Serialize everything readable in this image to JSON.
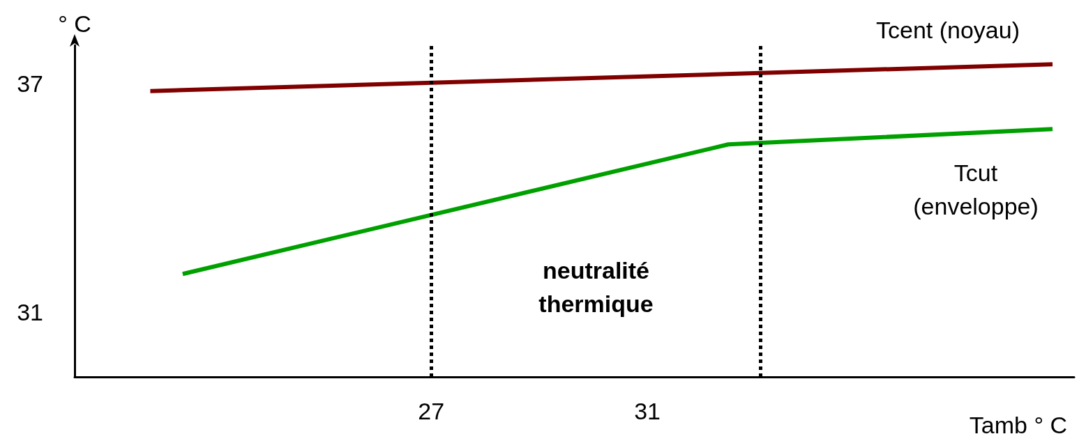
{
  "chart_data": {
    "type": "line",
    "ylabel": "° C",
    "xlabel": "Tamb ° C",
    "series": [
      {
        "name": "Tcent (noyau)",
        "color": "#800000",
        "x": [
          21.8,
          38.5
        ],
        "values": [
          36.8,
          37.5
        ]
      },
      {
        "name": "Tcut\n(enveloppe)",
        "color": "#00a000",
        "x": [
          22.4,
          32.5,
          38.5
        ],
        "values": [
          32,
          35.4,
          35.8
        ]
      }
    ],
    "xlim": [
      20.4,
      38.9
    ],
    "xticks": [
      27,
      31
    ],
    "ylim": [
      29.3,
      38
    ],
    "yticks": [
      31,
      37
    ],
    "ref_lines": [
      {
        "axis": "x",
        "value": 27,
        "color": "#000000",
        "line_style": "dotted"
      },
      {
        "axis": "x",
        "value": 33.1,
        "color": "#000000",
        "line_style": "dotted"
      }
    ],
    "annotations": [
      "neutralité\nthermique"
    ],
    "grid": false,
    "legend": false,
    "marker": "none",
    "line_style": "solid"
  }
}
